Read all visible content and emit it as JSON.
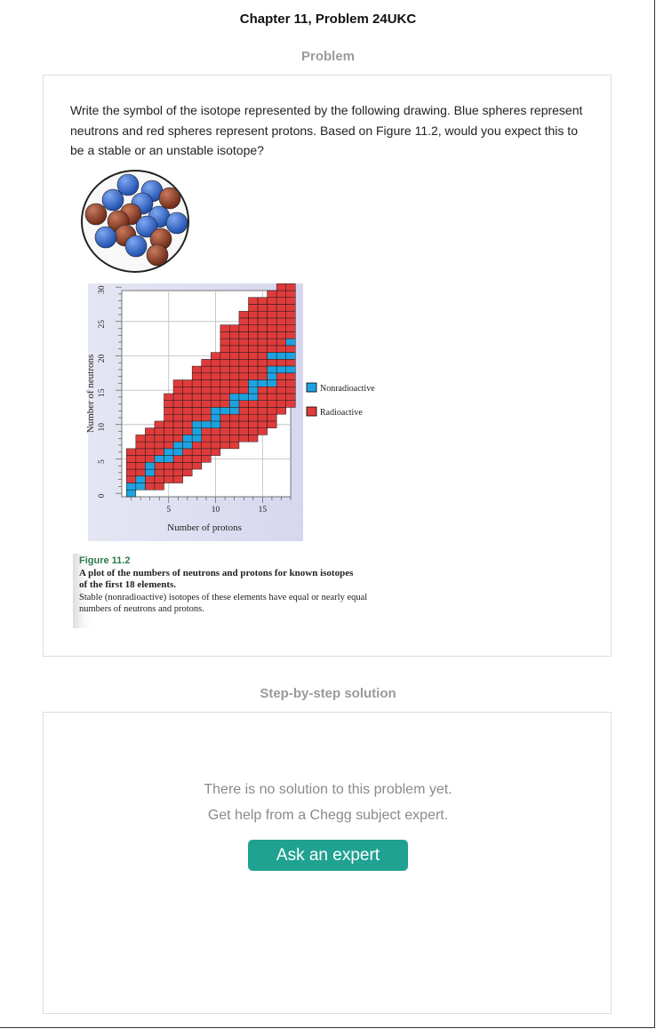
{
  "page": {
    "title": "Chapter 11, Problem 24UKC"
  },
  "problem": {
    "heading": "Problem",
    "text": "Write the symbol of the isotope represented by the following drawing. Blue spheres represent neutrons and red spheres represent protons. Based on Figure 11.2, would you expect this to be a stable or an unstable isotope?"
  },
  "colors": {
    "neutron": "#2d62c4",
    "proton": "#8b3a22",
    "radioactive": "#e03b3b",
    "nonradioactive": "#1ea3e0",
    "accent": "#1fa291"
  },
  "figure": {
    "caption_title": "Figure 11.2",
    "caption_bold": "A plot of the numbers of neutrons and protons for known isotopes of the first 18 elements.",
    "caption_text": "Stable (nonradioactive) isotopes of these elements have equal or nearly equal numbers of neutrons and protons."
  },
  "chart_data": {
    "type": "heatmap",
    "xlabel": "Number of protons",
    "ylabel": "Number of neutrons",
    "xlim": [
      0,
      18
    ],
    "ylim": [
      0,
      30
    ],
    "xticks": [
      5,
      10,
      15
    ],
    "yticks": [
      0,
      5,
      10,
      15,
      20,
      25,
      30
    ],
    "legend": [
      "Nonradioactive",
      "Radioactive"
    ],
    "legend_position": "right",
    "stable_isotopes": [
      [
        1,
        0
      ],
      [
        1,
        1
      ],
      [
        2,
        1
      ],
      [
        2,
        2
      ],
      [
        3,
        3
      ],
      [
        3,
        4
      ],
      [
        4,
        5
      ],
      [
        5,
        5
      ],
      [
        5,
        6
      ],
      [
        6,
        6
      ],
      [
        6,
        7
      ],
      [
        7,
        7
      ],
      [
        7,
        8
      ],
      [
        8,
        8
      ],
      [
        8,
        9
      ],
      [
        8,
        10
      ],
      [
        9,
        10
      ],
      [
        10,
        10
      ],
      [
        10,
        11
      ],
      [
        10,
        12
      ],
      [
        11,
        12
      ],
      [
        12,
        12
      ],
      [
        12,
        13
      ],
      [
        12,
        14
      ],
      [
        13,
        14
      ],
      [
        14,
        14
      ],
      [
        14,
        15
      ],
      [
        14,
        16
      ],
      [
        15,
        16
      ],
      [
        16,
        16
      ],
      [
        16,
        17
      ],
      [
        16,
        18
      ],
      [
        16,
        20
      ],
      [
        17,
        18
      ],
      [
        17,
        20
      ],
      [
        18,
        18
      ],
      [
        18,
        20
      ],
      [
        18,
        22
      ]
    ],
    "radioactive_ranges": [
      {
        "z": 1,
        "n": [
          2,
          6
        ]
      },
      {
        "z": 2,
        "n": [
          3,
          8
        ]
      },
      {
        "z": 3,
        "n": [
          1,
          9
        ]
      },
      {
        "z": 4,
        "n": [
          1,
          10
        ]
      },
      {
        "z": 5,
        "n": [
          2,
          14
        ]
      },
      {
        "z": 6,
        "n": [
          2,
          16
        ]
      },
      {
        "z": 7,
        "n": [
          3,
          16
        ]
      },
      {
        "z": 8,
        "n": [
          4,
          18
        ]
      },
      {
        "z": 9,
        "n": [
          5,
          19
        ]
      },
      {
        "z": 10,
        "n": [
          6,
          20
        ]
      },
      {
        "z": 11,
        "n": [
          7,
          24
        ]
      },
      {
        "z": 12,
        "n": [
          7,
          24
        ]
      },
      {
        "z": 13,
        "n": [
          8,
          26
        ]
      },
      {
        "z": 14,
        "n": [
          8,
          28
        ]
      },
      {
        "z": 15,
        "n": [
          9,
          28
        ]
      },
      {
        "z": 16,
        "n": [
          10,
          29
        ]
      },
      {
        "z": 17,
        "n": [
          12,
          30
        ]
      },
      {
        "z": 18,
        "n": [
          13,
          30
        ]
      }
    ]
  },
  "solution": {
    "heading": "Step-by-step solution",
    "empty_line1": "There is no solution to this problem yet.",
    "empty_line2": "Get help from a Chegg subject expert.",
    "button_label": "Ask an expert"
  }
}
